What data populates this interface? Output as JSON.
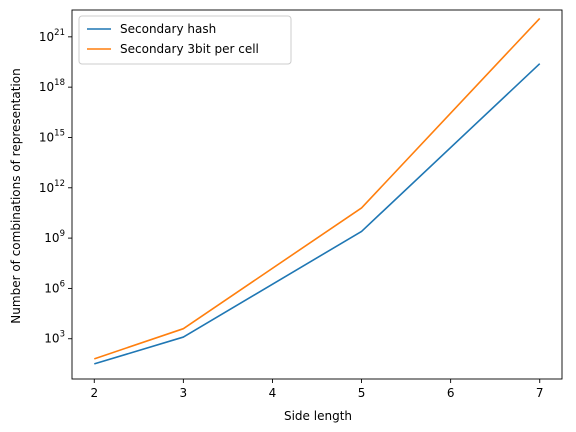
{
  "chart_data": {
    "type": "line",
    "title": "",
    "xlabel": "Side length",
    "ylabel": "Number of combinations of representation",
    "xlim": [
      1.75,
      7.25
    ],
    "ylim_log10": [
      0.6,
      22.6
    ],
    "y_scale": "log",
    "x_ticks": [
      2,
      3,
      4,
      5,
      6,
      7
    ],
    "x_tick_labels": [
      "2",
      "3",
      "4",
      "5",
      "6",
      "7"
    ],
    "y_ticks_log10": [
      3,
      6,
      9,
      12,
      15,
      18,
      21
    ],
    "y_tick_base": "10",
    "y_tick_exponents": [
      "3",
      "6",
      "9",
      "12",
      "15",
      "18",
      "21"
    ],
    "grid": false,
    "legend_position": "top-left",
    "series": [
      {
        "name": "Secondary hash",
        "color": "#1f77b4",
        "x": [
          2,
          3,
          5,
          7
        ],
        "y_log10": [
          1.5,
          3.1,
          9.4,
          19.4
        ]
      },
      {
        "name": "Secondary 3bit per cell",
        "color": "#ff7f0e",
        "x": [
          2,
          3,
          5,
          7
        ],
        "y_log10": [
          1.8,
          3.6,
          10.8,
          22.1
        ]
      }
    ]
  }
}
